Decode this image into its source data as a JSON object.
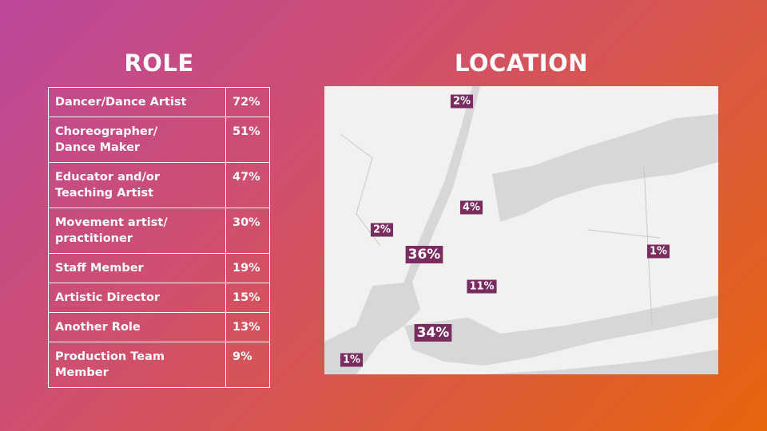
{
  "role": {
    "title": "ROLE",
    "rows": [
      [
        "Dancer/Dance Artist",
        "72%"
      ],
      [
        "Choreographer/\nDance Maker",
        "51%"
      ],
      [
        "Educator and/or\nTeaching Artist",
        "47%"
      ],
      [
        "Movement artist/\npractitioner",
        "30%"
      ],
      [
        "Staff Member",
        "19%"
      ],
      [
        "Artistic Director",
        "15%"
      ],
      [
        "Another Role",
        "13%"
      ],
      [
        "Production Team Member",
        "9%"
      ]
    ]
  },
  "location": {
    "title": "LOCATION",
    "labels": [
      "2%",
      "4%",
      "2%",
      "36%",
      "1%",
      "11%",
      "34%",
      "1%"
    ]
  }
}
